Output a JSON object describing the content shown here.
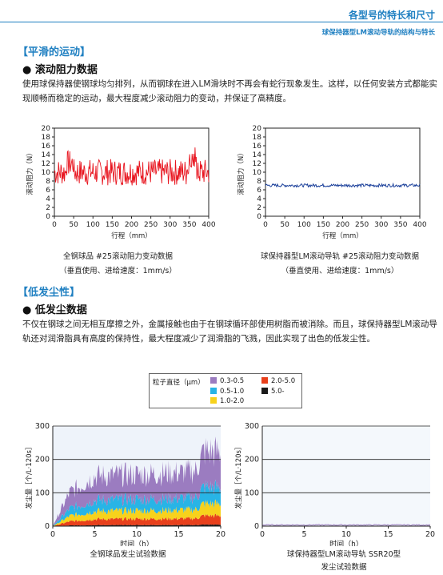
{
  "header": {
    "title": "各型号的特长和尺寸",
    "subtitle": "球保持器型LM滚动导轨的结构与特长"
  },
  "section1": {
    "heading": "【平滑的运动】",
    "subheading": "● 滚动阻力数据",
    "paragraph": "使用球保持器使钢球均匀排列，从而钢球在进入LM滑块时不再会有蛇行现象发生。这样，以任何安装方式都能实现顺畅而稳定的运动，最大程度减少滚动阻力的变动，并保证了高精度。"
  },
  "section2": {
    "heading": "【低发尘性】",
    "subheading": "● 低发尘数据",
    "paragraph": "不仅在钢球之间无相互摩擦之外，金属接触也由于在钢球循环部使用树脂而被消除。而且，球保持器型LM滚动导轨还对润滑脂具有高度的保持性，最大程度减少了润滑脂的飞溅，因此实现了出色的低发尘性。"
  },
  "legend": {
    "title": "粒子直径（μm）",
    "items": [
      {
        "label": "0.3-0.5",
        "color": "#9b7cc0"
      },
      {
        "label": "2.0-5.0",
        "color": "#e8401c"
      },
      {
        "label": "0.5-1.0",
        "color": "#28b4e6"
      },
      {
        "label": "5.0-",
        "color": "#1a1a1a"
      },
      {
        "label": "1.0-2.0",
        "color": "#f7d21c"
      }
    ]
  },
  "captions": {
    "c1_line1": "全钢球品 #25滚动阻力变动数据",
    "c1_line2": "（垂直使用、进给速度：1mm/s）",
    "c2_line1": "球保持器型LM滚动导轨 #25滚动阻力变动数据",
    "c2_line2": "（垂直使用、进给速度：1mm/s）",
    "c3_line1": "全钢球品发尘试验数据",
    "c4_line1": "球保持器型LM滚动导轨 SSR20型",
    "c4_line2": "发尘试验数据"
  },
  "chart_data": [
    {
      "type": "line",
      "series": [
        {
          "color": "#e8141e",
          "mean": 10,
          "range": [
            7,
            16
          ]
        }
      ],
      "xlabel": "行程（mm）",
      "ylabel": "滚动阻力（N）",
      "xlim": [
        0,
        400
      ],
      "ylim": [
        0,
        20
      ],
      "xticks": [
        0,
        50,
        100,
        150,
        200,
        250,
        300,
        350,
        400
      ],
      "yticks": [
        0,
        2,
        4,
        6,
        8,
        10,
        12,
        14,
        16,
        18,
        20
      ]
    },
    {
      "type": "line",
      "series": [
        {
          "color": "#1a3f9a",
          "mean": 7,
          "range": [
            6.6,
            7.4
          ]
        }
      ],
      "xlabel": "行程（mm）",
      "ylabel": "滚动阻力（N）",
      "xlim": [
        0,
        400
      ],
      "ylim": [
        0,
        20
      ],
      "xticks": [
        0,
        50,
        100,
        150,
        200,
        250,
        300,
        350,
        400
      ],
      "yticks": [
        0,
        2,
        4,
        6,
        8,
        10,
        12,
        14,
        16,
        18,
        20
      ]
    },
    {
      "type": "area",
      "xlabel": "时间（h）",
      "ylabel": "发尘量［个/L·120s］",
      "xlim": [
        0,
        20
      ],
      "ylim": [
        0,
        300
      ],
      "xticks": [
        0,
        5,
        10,
        15,
        20
      ],
      "yticks": [
        0,
        100,
        200,
        300
      ],
      "grid": true,
      "stack_totals_approx": {
        "x": [
          0,
          2,
          5,
          10,
          15,
          17,
          18,
          20
        ],
        "total": [
          0,
          100,
          150,
          155,
          160,
          165,
          225,
          220
        ]
      }
    },
    {
      "type": "area",
      "xlabel": "时间（h）",
      "ylabel": "发尘量［个/L·120s］",
      "xlim": [
        0,
        20
      ],
      "ylim": [
        0,
        300
      ],
      "xticks": [
        0,
        5,
        10,
        15,
        20
      ],
      "yticks": [
        0,
        100,
        200,
        300
      ],
      "grid": true,
      "stack_totals_approx": {
        "x": [
          0,
          20
        ],
        "total": [
          3,
          3
        ]
      }
    }
  ]
}
